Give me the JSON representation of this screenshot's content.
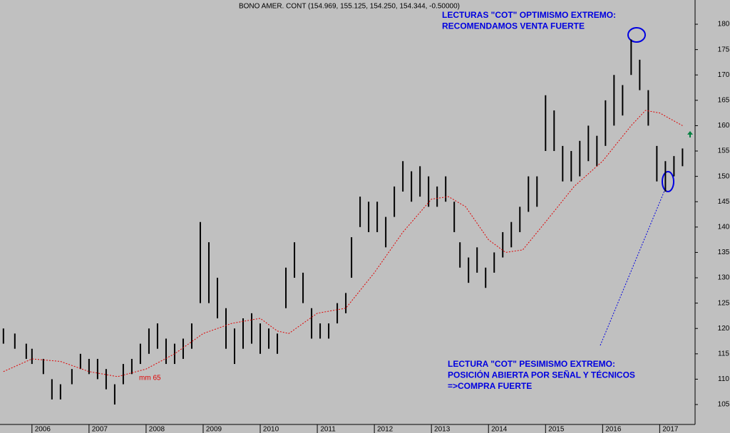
{
  "chart_data": {
    "type": "range-bar",
    "title": "BONO AMER. CONT (154.969, 155.125, 154.250, 154.344, -0.50000)",
    "color": "#000000",
    "x": [
      2005.5,
      2005.7,
      2005.9,
      2006.0,
      2006.2,
      2006.35,
      2006.5,
      2006.7,
      2006.85,
      2007.0,
      2007.15,
      2007.3,
      2007.45,
      2007.6,
      2007.75,
      2007.9,
      2008.05,
      2008.2,
      2008.35,
      2008.5,
      2008.65,
      2008.8,
      2008.95,
      2009.1,
      2009.25,
      2009.4,
      2009.55,
      2009.7,
      2009.85,
      2010.0,
      2010.15,
      2010.3,
      2010.45,
      2010.6,
      2010.75,
      2010.9,
      2011.05,
      2011.2,
      2011.35,
      2011.5,
      2011.6,
      2011.75,
      2011.9,
      2012.05,
      2012.2,
      2012.35,
      2012.5,
      2012.65,
      2012.8,
      2012.95,
      2013.1,
      2013.25,
      2013.4,
      2013.5,
      2013.65,
      2013.8,
      2013.95,
      2014.1,
      2014.25,
      2014.4,
      2014.55,
      2014.7,
      2014.85,
      2015.0,
      2015.15,
      2015.3,
      2015.45,
      2015.6,
      2015.75,
      2015.9,
      2016.05,
      2016.2,
      2016.35,
      2016.5,
      2016.65,
      2016.8,
      2016.95,
      2017.1,
      2017.25,
      2017.4
    ],
    "high": [
      120,
      119,
      117,
      116,
      114,
      110,
      109,
      112,
      115,
      114,
      114,
      112,
      109,
      113,
      114,
      117,
      120,
      121,
      118,
      117,
      118,
      121,
      141,
      137,
      130,
      124,
      120,
      122,
      123,
      121,
      120,
      119,
      132,
      137,
      131,
      124,
      121,
      121,
      125,
      127,
      138,
      146,
      145,
      145,
      142,
      148,
      153,
      151,
      152,
      150,
      148,
      150,
      145,
      137,
      134,
      136,
      132,
      135,
      139,
      141,
      144,
      150,
      150,
      166,
      163,
      156,
      155,
      157,
      160,
      158,
      165,
      170,
      168,
      177,
      173,
      167,
      156,
      153,
      154,
      155.5
    ],
    "low": [
      117,
      116,
      114,
      113,
      111,
      106,
      106,
      109,
      112,
      111,
      110,
      108,
      105,
      109,
      111,
      113,
      115,
      116,
      113,
      113,
      114,
      116,
      125,
      125,
      122,
      116,
      113,
      116,
      117,
      115,
      116,
      115,
      124,
      130,
      125,
      118,
      118,
      118,
      121,
      123,
      130,
      140,
      139,
      139,
      136,
      142,
      147,
      145,
      146,
      144,
      144,
      145,
      139,
      132,
      129,
      131,
      128,
      131,
      134,
      136,
      139,
      143,
      144,
      155,
      155,
      149,
      149,
      150,
      153,
      152,
      156,
      160,
      162,
      170,
      167,
      160,
      149,
      147,
      150,
      152
    ],
    "moving_average": {
      "label": "mm 65",
      "color": "#e00000",
      "x": [
        2005.5,
        2006.0,
        2006.5,
        2007.0,
        2007.5,
        2008.0,
        2008.5,
        2009.0,
        2009.5,
        2010.0,
        2010.3,
        2010.5,
        2011.0,
        2011.5,
        2012.0,
        2012.5,
        2013.0,
        2013.3,
        2013.6,
        2014.0,
        2014.3,
        2014.6,
        2015.0,
        2015.5,
        2016.0,
        2016.5,
        2016.75,
        2017.0,
        2017.4
      ],
      "values": [
        111.5,
        114,
        113.5,
        111.5,
        110.5,
        112,
        115,
        119,
        121,
        122,
        119.5,
        119,
        123,
        124,
        131,
        139,
        145.5,
        146,
        144,
        137.5,
        135,
        135.5,
        141,
        148,
        153,
        160,
        163,
        162.5,
        160
      ]
    },
    "xlim": [
      2005.44,
      2017.62
    ],
    "xticks": [
      2006,
      2007,
      2008,
      2009,
      2010,
      2011,
      2012,
      2013,
      2014,
      2015,
      2016,
      2017
    ],
    "ylim": [
      101.07,
      184.78
    ],
    "yticks": [
      105,
      110,
      115,
      120,
      125,
      130,
      135,
      140,
      145,
      150,
      155,
      160,
      165,
      170,
      175,
      180
    ],
    "annotations": [
      {
        "lines": [
          "LECTURAS \"COT\" OPTIMISMO EXTREMO:",
          "RECOMENDAMOS VENTA FUERTE"
        ],
        "color": "#0000e0"
      },
      {
        "lines": [
          "LECTURA \"COT\" PESIMISMO EXTREMO:",
          "POSICIÓN ABIERTA POR SEÑAL Y TÉCNICOS",
          "=>COMPRA FUERTE"
        ],
        "color": "#0000e0"
      }
    ]
  }
}
